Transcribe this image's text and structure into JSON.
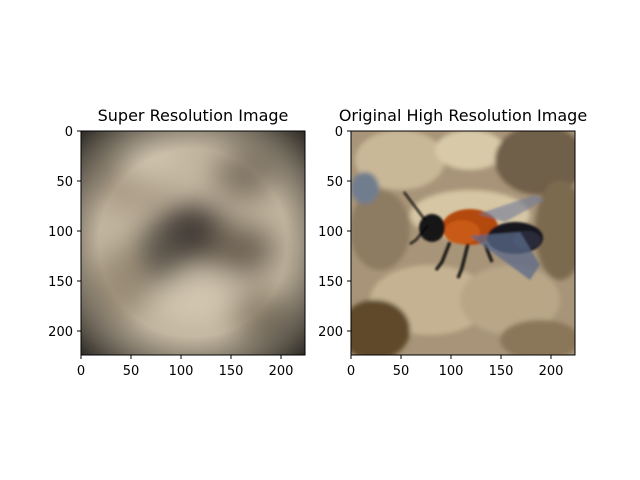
{
  "chart_data": [
    {
      "type": "heatmap",
      "title": "Super Resolution Image",
      "xlabel": "",
      "ylabel": "",
      "xlim": [
        0,
        224
      ],
      "ylim": [
        224,
        0
      ],
      "xticks": [
        0,
        50,
        100,
        150,
        200
      ],
      "yticks": [
        0,
        50,
        100,
        150,
        200
      ],
      "image_content": "blurry beige and dark gray blob image"
    },
    {
      "type": "heatmap",
      "title": "Original High Resolution Image",
      "xlabel": "",
      "ylabel": "",
      "xlim": [
        0,
        224
      ],
      "ylim": [
        224,
        0
      ],
      "xticks": [
        0,
        50,
        100,
        150,
        200
      ],
      "yticks": [
        0,
        50,
        100,
        150,
        200
      ],
      "image_content": "photograph of a bee with orange fur on rock"
    }
  ],
  "colors": {
    "beige": "#c9bca6",
    "dark_blob": "#2a2622",
    "rock": "#b7a68a",
    "bee_orange": "#b4480f",
    "bee_black": "#121214",
    "wing": "#5b6a8a"
  }
}
